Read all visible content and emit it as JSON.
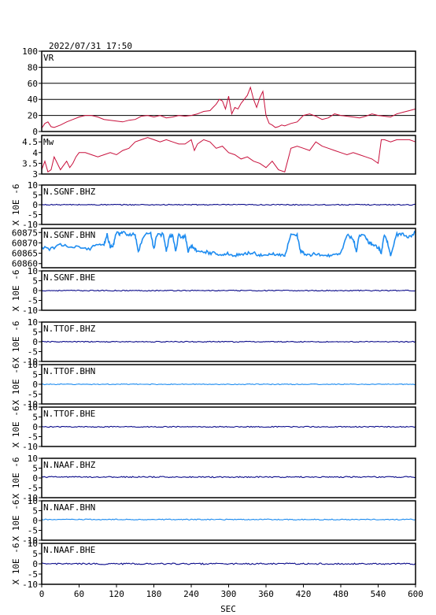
{
  "title": "2022/07/31 17:50",
  "colors": {
    "frame": "#000000",
    "red": "#c8103c",
    "dark": "#0a0a8a",
    "light": "#1e8cf0",
    "bg": "#ffffff"
  },
  "x_axis": {
    "label": "SEC",
    "range": [
      0,
      600
    ],
    "ticks": [
      0,
      60,
      120,
      180,
      240,
      300,
      360,
      420,
      480,
      540,
      600
    ]
  },
  "chart_data": [
    {
      "type": "line",
      "panel": "vr",
      "label": "VR",
      "ylim": [
        0,
        100
      ],
      "yticks": [
        0,
        20,
        40,
        60,
        80,
        100
      ],
      "grid": true,
      "color": "red",
      "x": [
        0,
        5,
        10,
        15,
        20,
        30,
        40,
        50,
        60,
        70,
        80,
        90,
        100,
        110,
        120,
        130,
        140,
        150,
        160,
        170,
        180,
        190,
        200,
        210,
        220,
        230,
        240,
        250,
        260,
        270,
        275,
        280,
        285,
        290,
        295,
        300,
        305,
        310,
        315,
        320,
        325,
        330,
        335,
        340,
        345,
        350,
        355,
        360,
        365,
        370,
        375,
        380,
        385,
        390,
        400,
        410,
        420,
        430,
        440,
        450,
        460,
        470,
        480,
        490,
        500,
        510,
        520,
        530,
        540,
        550,
        560,
        570,
        580,
        590,
        600
      ],
      "values": [
        4,
        10,
        12,
        6,
        5,
        8,
        12,
        15,
        18,
        20,
        20,
        18,
        15,
        14,
        13,
        12,
        14,
        15,
        19,
        20,
        18,
        20,
        17,
        18,
        20,
        19,
        20,
        22,
        25,
        26,
        30,
        34,
        40,
        38,
        28,
        44,
        22,
        30,
        28,
        35,
        40,
        45,
        55,
        40,
        30,
        42,
        50,
        20,
        10,
        8,
        5,
        6,
        8,
        7,
        10,
        12,
        20,
        22,
        19,
        15,
        17,
        22,
        20,
        19,
        18,
        17,
        19,
        22,
        20,
        19,
        18,
        22,
        24,
        26,
        28
      ]
    },
    {
      "type": "line",
      "panel": "mw",
      "label": "Mw",
      "ylim": [
        3.0,
        4.8
      ],
      "yticks": [
        3.0,
        3.5,
        4.0,
        4.5
      ],
      "grid": false,
      "color": "red",
      "x": [
        0,
        5,
        10,
        15,
        20,
        25,
        30,
        35,
        40,
        45,
        50,
        55,
        60,
        70,
        80,
        90,
        100,
        110,
        120,
        130,
        140,
        150,
        160,
        170,
        180,
        190,
        200,
        210,
        220,
        230,
        240,
        245,
        250,
        260,
        270,
        280,
        290,
        300,
        310,
        320,
        330,
        340,
        350,
        360,
        370,
        380,
        390,
        400,
        410,
        420,
        430,
        440,
        450,
        460,
        470,
        480,
        490,
        500,
        510,
        520,
        530,
        540,
        545,
        550,
        560,
        570,
        580,
        590,
        600
      ],
      "values": [
        3.2,
        3.6,
        3.1,
        3.2,
        3.8,
        3.5,
        3.2,
        3.4,
        3.6,
        3.3,
        3.5,
        3.8,
        4.0,
        4.0,
        3.9,
        3.8,
        3.9,
        4.0,
        3.9,
        4.1,
        4.2,
        4.5,
        4.6,
        4.7,
        4.6,
        4.5,
        4.6,
        4.5,
        4.4,
        4.4,
        4.6,
        4.1,
        4.4,
        4.6,
        4.5,
        4.2,
        4.3,
        4.0,
        3.9,
        3.7,
        3.8,
        3.6,
        3.5,
        3.3,
        3.6,
        3.2,
        3.1,
        4.2,
        4.3,
        4.2,
        4.1,
        4.5,
        4.3,
        4.2,
        4.1,
        4.0,
        3.9,
        4.0,
        3.9,
        3.8,
        3.7,
        3.5,
        4.6,
        4.6,
        4.5,
        4.6,
        4.6,
        4.6,
        4.5
      ]
    },
    {
      "type": "line",
      "panel": "trace",
      "label": "N.SGNF.BHZ",
      "ylabel": "X 10E -6",
      "ylim": [
        -10,
        10
      ],
      "yticks": [
        -10,
        -5,
        0,
        5,
        10
      ],
      "color": "dark",
      "level": 0,
      "noise": 0.25
    },
    {
      "type": "line",
      "panel": "sgnf_bhn",
      "label": "N.SGNF.BHN",
      "ylim": [
        60858,
        60877
      ],
      "yticks": [
        60860,
        60865,
        60870,
        60875
      ],
      "color": "light",
      "x": [
        0,
        15,
        30,
        45,
        60,
        75,
        90,
        100,
        105,
        110,
        115,
        120,
        125,
        130,
        140,
        150,
        155,
        165,
        175,
        180,
        185,
        195,
        200,
        205,
        210,
        215,
        220,
        225,
        230,
        235,
        240,
        245,
        250,
        260,
        270,
        280,
        290,
        300,
        310,
        320,
        330,
        340,
        350,
        360,
        370,
        380,
        390,
        395,
        400,
        410,
        415,
        420,
        430,
        440,
        450,
        460,
        470,
        480,
        490,
        500,
        505,
        510,
        520,
        525,
        530,
        540,
        545,
        550,
        555,
        560,
        570,
        580,
        590,
        600
      ],
      "values": [
        60868,
        60867,
        60869,
        60868,
        60868,
        60867,
        60869,
        60869,
        60874,
        60868,
        60869,
        60875,
        60874,
        60875,
        60874,
        60874,
        60866,
        60874,
        60875,
        60867,
        60874,
        60874,
        60866,
        60873,
        60874,
        60866,
        60874,
        60872,
        60874,
        60866,
        60869,
        60867,
        60866,
        60866,
        60865,
        60865,
        60864,
        60865,
        60864,
        60864,
        60865,
        60865,
        60864,
        60864,
        60865,
        60864,
        60864,
        60869,
        60874,
        60874,
        60866,
        60865,
        60864,
        60865,
        60864,
        60864,
        60864,
        60865,
        60874,
        60872,
        60866,
        60874,
        60873,
        60870,
        60869,
        60868,
        60865,
        60874,
        60870,
        60864,
        60874,
        60874,
        60873,
        60875
      ]
    },
    {
      "type": "line",
      "panel": "trace",
      "label": "N.SGNF.BHE",
      "ylabel": "X 10E -6",
      "ylim": [
        -10,
        10
      ],
      "yticks": [
        -10,
        -5,
        0,
        5,
        10
      ],
      "color": "dark",
      "level": 0,
      "noise": 0.25
    },
    {
      "type": "line",
      "panel": "trace",
      "label": "N.TTOF.BHZ",
      "ylabel": "X 10E -6",
      "ylim": [
        -10,
        10
      ],
      "yticks": [
        -10,
        -5,
        0,
        5,
        10
      ],
      "color": "dark",
      "level": 0,
      "noise": 0.25
    },
    {
      "type": "line",
      "panel": "trace",
      "label": "N.TTOF.BHN",
      "ylabel": "X 10E -6",
      "ylim": [
        -10,
        10
      ],
      "yticks": [
        -10,
        -5,
        0,
        5,
        10
      ],
      "color": "light",
      "level": 0,
      "noise": 0.2
    },
    {
      "type": "line",
      "panel": "trace",
      "label": "N.TTOF.BHE",
      "ylabel": "X 10E -6",
      "ylim": [
        -10,
        10
      ],
      "yticks": [
        -10,
        -5,
        0,
        5,
        10
      ],
      "color": "dark",
      "level": 0,
      "noise": 0.25
    },
    {
      "type": "line",
      "panel": "trace",
      "label": "N.NAAF.BHZ",
      "ylabel": "X 10E -6",
      "ylim": [
        -10,
        10
      ],
      "yticks": [
        -10,
        -5,
        0,
        5,
        10
      ],
      "color": "dark",
      "level": 0.5,
      "noise": 0.3
    },
    {
      "type": "line",
      "panel": "trace",
      "label": "N.NAAF.BHN",
      "ylabel": "X 10E -6",
      "ylim": [
        -10,
        10
      ],
      "yticks": [
        -10,
        -5,
        0,
        5,
        10
      ],
      "color": "light",
      "level": 0.5,
      "noise": 0.25
    },
    {
      "type": "line",
      "panel": "trace",
      "label": "N.NAAF.BHE",
      "ylabel": "X 10E -6",
      "ylim": [
        -10,
        10
      ],
      "yticks": [
        -10,
        -5,
        0,
        5,
        10
      ],
      "color": "dark",
      "level": 0,
      "noise": 0.35
    }
  ]
}
